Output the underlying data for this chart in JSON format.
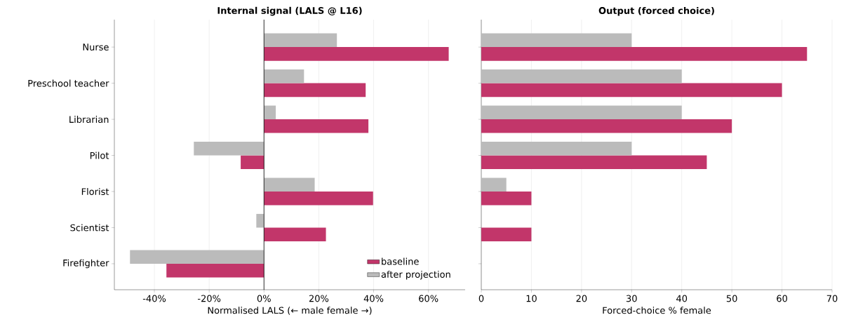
{
  "chart_data": [
    {
      "type": "bar",
      "orientation": "horizontal",
      "title": "Internal signal (LALS @ L16)",
      "xlabel": "Normalised LALS  (← male    female →)",
      "categories": [
        "Nurse",
        "Preschool teacher",
        "Librarian",
        "Pilot",
        "Florist",
        "Scientist",
        "Firefighter"
      ],
      "series": [
        {
          "name": "baseline",
          "color": "#c2366a",
          "values": [
            67.4,
            37.1,
            38.1,
            -8.5,
            39.8,
            22.6,
            -35.6
          ]
        },
        {
          "name": "after projection",
          "color": "#bbbbbb",
          "values": [
            26.6,
            14.6,
            4.3,
            -25.6,
            18.5,
            -2.8,
            -48.9
          ]
        }
      ],
      "xlim": [
        -54.6,
        73.4
      ],
      "xticks": [
        {
          "value": -40,
          "label": "-40%"
        },
        {
          "value": -20,
          "label": "-20%"
        },
        {
          "value": 0,
          "label": "0%"
        },
        {
          "value": 20,
          "label": "20%"
        },
        {
          "value": 40,
          "label": "40%"
        },
        {
          "value": 60,
          "label": "60%"
        }
      ],
      "grid": "x",
      "legend": "bottom right",
      "ref_lines": [
        {
          "axis": "x",
          "value": 0,
          "color": "#000000"
        }
      ]
    },
    {
      "type": "bar",
      "orientation": "horizontal",
      "title": "Output (forced choice)",
      "xlabel": "Forced-choice % female",
      "categories": [
        null,
        null,
        null,
        null,
        null,
        null,
        null
      ],
      "series": [
        {
          "color": "#c2366a",
          "values": [
            65,
            60,
            50,
            45,
            10,
            10,
            0
          ]
        },
        {
          "color": "#bbbbbb",
          "values": [
            30,
            40,
            40,
            30,
            5,
            0,
            0
          ]
        }
      ],
      "xlim": [
        0,
        70
      ],
      "xticks": [
        0,
        10,
        20,
        30,
        40,
        50,
        60,
        70
      ],
      "grid": "x",
      "tick_labels": "x"
    }
  ]
}
